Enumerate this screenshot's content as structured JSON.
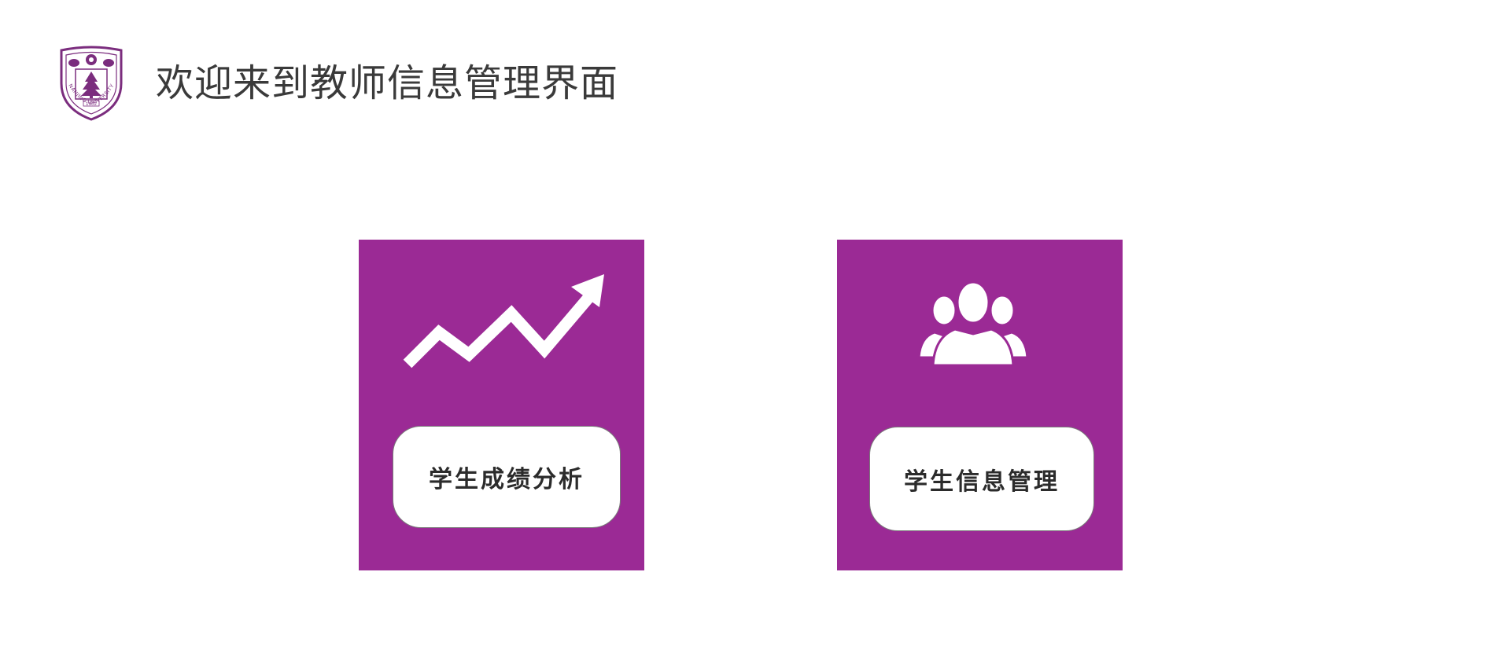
{
  "header": {
    "title": "欢迎来到教师信息管理界面",
    "logo_icon": "nanjing-university-emblem",
    "logo_text": "NANJING UNIVERSITY",
    "logo_year": "1902"
  },
  "colors": {
    "tile_background": "#9b2a95",
    "button_background": "#ffffff",
    "title_text": "#3a3a3a",
    "logo_purple": "#7b2d7e"
  },
  "tiles": [
    {
      "icon": "trend-up-arrow-icon",
      "label": "学生成绩分析"
    },
    {
      "icon": "user-group-icon",
      "label": "学生信息管理"
    }
  ]
}
